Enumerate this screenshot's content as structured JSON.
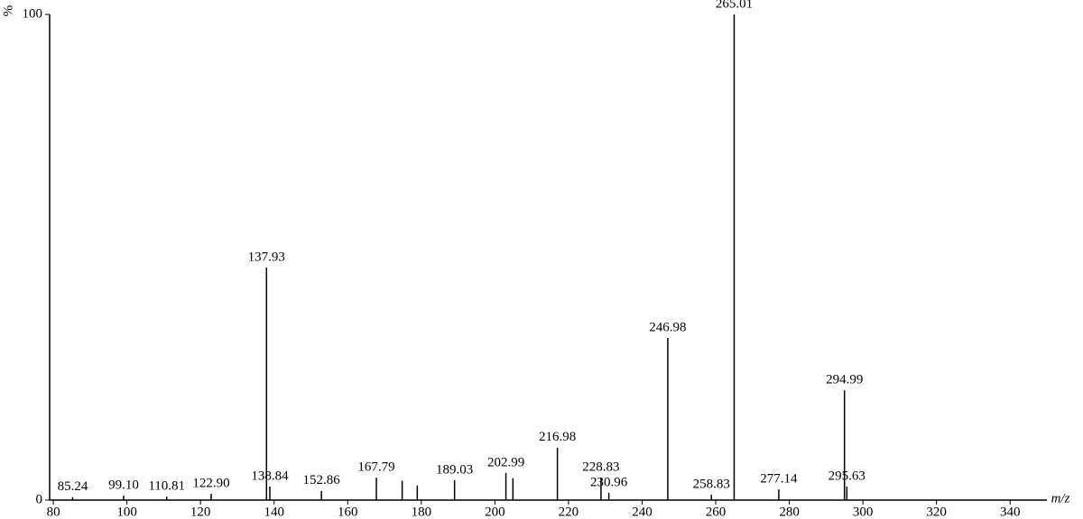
{
  "chart_data": {
    "type": "stem",
    "y_label": "%",
    "x_label": "m/z",
    "x": [
      85.24,
      99.1,
      110.81,
      122.9,
      137.93,
      138.84,
      152.86,
      167.79,
      174.8,
      178.9,
      189.03,
      202.99,
      204.9,
      216.98,
      228.83,
      230.96,
      246.98,
      258.83,
      265.01,
      277.14,
      294.99,
      295.63
    ],
    "values": [
      0.6,
      0.9,
      0.7,
      1.3,
      47.9,
      2.8,
      1.9,
      4.6,
      4.0,
      3.0,
      4.1,
      5.6,
      4.5,
      10.8,
      4.6,
      1.5,
      33.4,
      1.1,
      100,
      2.2,
      22.6,
      2.8
    ],
    "labels": [
      "85.24",
      "99.10",
      "110.81",
      "122.90",
      "137.93",
      "138.84",
      "152.86",
      "167.79",
      null,
      null,
      "189.03",
      "202.99",
      null,
      "216.98",
      "228.83",
      "230.96",
      "246.98",
      "258.83",
      "265.01",
      "277.14",
      "294.99",
      "295.63"
    ],
    "color": "#000000",
    "xlim": [
      79,
      350
    ],
    "xticks": [
      80,
      100,
      120,
      140,
      160,
      180,
      200,
      220,
      240,
      260,
      280,
      300,
      320,
      340
    ],
    "ylim": [
      0,
      100
    ],
    "yticks": [
      0,
      100
    ]
  }
}
